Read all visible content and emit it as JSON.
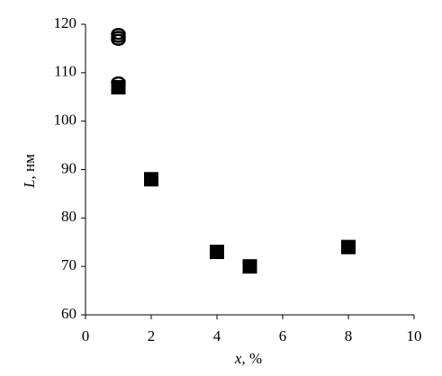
{
  "chart_data": {
    "type": "scatter",
    "xlabel": {
      "symbol": "x",
      "unit": ", %"
    },
    "ylabel": {
      "symbol": "L",
      "unit": ", нм"
    },
    "xlim": [
      0,
      10
    ],
    "xticks": [
      0,
      2,
      4,
      6,
      8,
      10
    ],
    "ylim": [
      60,
      120
    ],
    "yticks": [
      60,
      70,
      80,
      90,
      100,
      110,
      120
    ],
    "grid": false,
    "series": [
      {
        "marker": "circle",
        "color": "#000000",
        "x": [
          1,
          1,
          1,
          1
        ],
        "values": [
          118,
          117.4,
          116.8,
          108
        ]
      },
      {
        "marker": "square",
        "color": "#000000",
        "x": [
          1,
          2,
          4,
          5,
          8
        ],
        "values": [
          107,
          88,
          73,
          70,
          74
        ]
      }
    ]
  }
}
